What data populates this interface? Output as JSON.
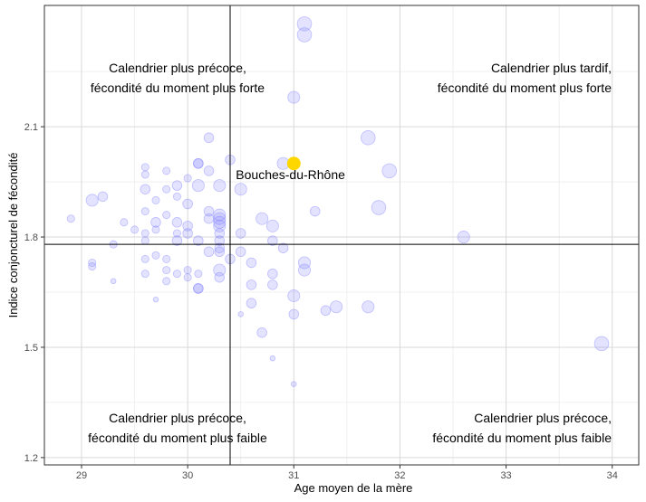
{
  "chart_data": {
    "type": "scatter",
    "xlabel": "Age moyen de la mère",
    "ylabel": "Indice conjoncturel de fécondité",
    "xlim": [
      28.65,
      34.25
    ],
    "ylim": [
      1.18,
      2.43
    ],
    "x_ticks": [
      {
        "value": 29,
        "label": "29"
      },
      {
        "value": 30,
        "label": "30"
      },
      {
        "value": 31,
        "label": "31"
      },
      {
        "value": 32,
        "label": "32"
      },
      {
        "value": 33,
        "label": "33"
      },
      {
        "value": 34,
        "label": "34"
      }
    ],
    "y_ticks": [
      {
        "value": 1.2,
        "label": "1.2"
      },
      {
        "value": 1.5,
        "label": "1.5"
      },
      {
        "value": 1.8,
        "label": "1.8"
      },
      {
        "value": 2.1,
        "label": "2.1"
      }
    ],
    "reference_lines": {
      "x": 30.4,
      "y": 1.78
    },
    "quadrant_labels": {
      "top_left": [
        "Calendrier plus précoce,",
        "fécondité du moment plus forte"
      ],
      "top_right": [
        "Calendrier plus tardif,",
        "fécondité du moment plus forte"
      ],
      "bottom_left": [
        "Calendrier plus précoce,",
        "fécondité du moment plus faible"
      ],
      "bottom_right": [
        "Calendrier plus précoce,",
        "fécondité du moment plus faible"
      ]
    },
    "highlight": {
      "label": "Bouches-du-Rhône",
      "x": 31.0,
      "y": 2.0,
      "size": 6,
      "color": "#FFD700"
    },
    "point_color": "#8080FF",
    "points": [
      {
        "x": 31.1,
        "y": 2.38,
        "s": 5
      },
      {
        "x": 31.1,
        "y": 2.35,
        "s": 5
      },
      {
        "x": 31.0,
        "y": 2.18,
        "s": 4
      },
      {
        "x": 31.7,
        "y": 2.07,
        "s": 5
      },
      {
        "x": 30.2,
        "y": 2.07,
        "s": 3
      },
      {
        "x": 30.4,
        "y": 2.01,
        "s": 3
      },
      {
        "x": 30.9,
        "y": 2.0,
        "s": 4
      },
      {
        "x": 31.9,
        "y": 1.98,
        "s": 5
      },
      {
        "x": 30.1,
        "y": 2.0,
        "s": 3
      },
      {
        "x": 30.1,
        "y": 2.0,
        "s": 3
      },
      {
        "x": 29.6,
        "y": 1.99,
        "s": 2
      },
      {
        "x": 29.6,
        "y": 1.97,
        "s": 2
      },
      {
        "x": 29.8,
        "y": 1.98,
        "s": 2
      },
      {
        "x": 30.2,
        "y": 1.98,
        "s": 3
      },
      {
        "x": 30.0,
        "y": 1.96,
        "s": 2
      },
      {
        "x": 30.1,
        "y": 1.94,
        "s": 4
      },
      {
        "x": 30.3,
        "y": 1.94,
        "s": 4
      },
      {
        "x": 30.5,
        "y": 1.93,
        "s": 4
      },
      {
        "x": 29.6,
        "y": 1.93,
        "s": 3
      },
      {
        "x": 29.8,
        "y": 1.93,
        "s": 2
      },
      {
        "x": 29.9,
        "y": 1.94,
        "s": 3
      },
      {
        "x": 29.2,
        "y": 1.91,
        "s": 3
      },
      {
        "x": 29.1,
        "y": 1.9,
        "s": 4
      },
      {
        "x": 29.7,
        "y": 1.9,
        "s": 2
      },
      {
        "x": 29.9,
        "y": 1.91,
        "s": 2
      },
      {
        "x": 30.0,
        "y": 1.89,
        "s": 3
      },
      {
        "x": 29.6,
        "y": 1.87,
        "s": 2
      },
      {
        "x": 29.8,
        "y": 1.86,
        "s": 2
      },
      {
        "x": 30.2,
        "y": 1.87,
        "s": 3
      },
      {
        "x": 30.3,
        "y": 1.86,
        "s": 4
      },
      {
        "x": 30.3,
        "y": 1.85,
        "s": 4
      },
      {
        "x": 30.2,
        "y": 1.85,
        "s": 3
      },
      {
        "x": 31.2,
        "y": 1.87,
        "s": 3
      },
      {
        "x": 31.8,
        "y": 1.88,
        "s": 5
      },
      {
        "x": 28.9,
        "y": 1.85,
        "s": 2
      },
      {
        "x": 29.4,
        "y": 1.84,
        "s": 2
      },
      {
        "x": 29.5,
        "y": 1.82,
        "s": 2
      },
      {
        "x": 29.7,
        "y": 1.84,
        "s": 3
      },
      {
        "x": 29.9,
        "y": 1.84,
        "s": 3
      },
      {
        "x": 30.0,
        "y": 1.83,
        "s": 3
      },
      {
        "x": 30.3,
        "y": 1.84,
        "s": 4
      },
      {
        "x": 30.3,
        "y": 1.83,
        "s": 4
      },
      {
        "x": 30.7,
        "y": 1.85,
        "s": 4
      },
      {
        "x": 30.8,
        "y": 1.83,
        "s": 4
      },
      {
        "x": 32.6,
        "y": 1.8,
        "s": 4
      },
      {
        "x": 29.6,
        "y": 1.81,
        "s": 2
      },
      {
        "x": 29.7,
        "y": 1.82,
        "s": 2
      },
      {
        "x": 29.9,
        "y": 1.81,
        "s": 2
      },
      {
        "x": 30.0,
        "y": 1.81,
        "s": 3
      },
      {
        "x": 30.3,
        "y": 1.81,
        "s": 3
      },
      {
        "x": 30.5,
        "y": 1.81,
        "s": 3
      },
      {
        "x": 29.3,
        "y": 1.78,
        "s": 2
      },
      {
        "x": 29.6,
        "y": 1.79,
        "s": 2
      },
      {
        "x": 29.9,
        "y": 1.79,
        "s": 3
      },
      {
        "x": 30.1,
        "y": 1.79,
        "s": 3
      },
      {
        "x": 30.3,
        "y": 1.79,
        "s": 3
      },
      {
        "x": 30.3,
        "y": 1.77,
        "s": 3
      },
      {
        "x": 30.8,
        "y": 1.79,
        "s": 3
      },
      {
        "x": 30.9,
        "y": 1.77,
        "s": 3
      },
      {
        "x": 30.5,
        "y": 1.76,
        "s": 3
      },
      {
        "x": 29.6,
        "y": 1.74,
        "s": 2
      },
      {
        "x": 29.7,
        "y": 1.75,
        "s": 2
      },
      {
        "x": 29.8,
        "y": 1.74,
        "s": 2
      },
      {
        "x": 30.2,
        "y": 1.76,
        "s": 3
      },
      {
        "x": 30.3,
        "y": 1.76,
        "s": 3
      },
      {
        "x": 30.4,
        "y": 1.74,
        "s": 3
      },
      {
        "x": 29.1,
        "y": 1.73,
        "s": 2
      },
      {
        "x": 29.1,
        "y": 1.72,
        "s": 2
      },
      {
        "x": 30.3,
        "y": 1.71,
        "s": 4
      },
      {
        "x": 30.6,
        "y": 1.73,
        "s": 3
      },
      {
        "x": 31.1,
        "y": 1.73,
        "s": 4
      },
      {
        "x": 31.1,
        "y": 1.71,
        "s": 4
      },
      {
        "x": 29.6,
        "y": 1.7,
        "s": 2
      },
      {
        "x": 29.8,
        "y": 1.71,
        "s": 2
      },
      {
        "x": 29.9,
        "y": 1.7,
        "s": 2
      },
      {
        "x": 30.0,
        "y": 1.71,
        "s": 2
      },
      {
        "x": 30.0,
        "y": 1.69,
        "s": 2
      },
      {
        "x": 30.1,
        "y": 1.7,
        "s": 2
      },
      {
        "x": 30.3,
        "y": 1.69,
        "s": 3
      },
      {
        "x": 30.8,
        "y": 1.7,
        "s": 3
      },
      {
        "x": 29.3,
        "y": 1.68,
        "s": 1
      },
      {
        "x": 29.8,
        "y": 1.68,
        "s": 2
      },
      {
        "x": 30.1,
        "y": 1.66,
        "s": 3
      },
      {
        "x": 30.1,
        "y": 1.66,
        "s": 3
      },
      {
        "x": 30.6,
        "y": 1.67,
        "s": 3
      },
      {
        "x": 30.8,
        "y": 1.67,
        "s": 3
      },
      {
        "x": 29.7,
        "y": 1.63,
        "s": 1
      },
      {
        "x": 31.0,
        "y": 1.64,
        "s": 4
      },
      {
        "x": 30.6,
        "y": 1.62,
        "s": 3
      },
      {
        "x": 31.4,
        "y": 1.61,
        "s": 4
      },
      {
        "x": 31.7,
        "y": 1.61,
        "s": 4
      },
      {
        "x": 31.3,
        "y": 1.6,
        "s": 3
      },
      {
        "x": 31.0,
        "y": 1.59,
        "s": 3
      },
      {
        "x": 30.5,
        "y": 1.59,
        "s": 1
      },
      {
        "x": 30.7,
        "y": 1.54,
        "s": 3
      },
      {
        "x": 33.9,
        "y": 1.51,
        "s": 5
      },
      {
        "x": 30.8,
        "y": 1.47,
        "s": 1
      },
      {
        "x": 31.0,
        "y": 1.4,
        "s": 1
      }
    ]
  }
}
